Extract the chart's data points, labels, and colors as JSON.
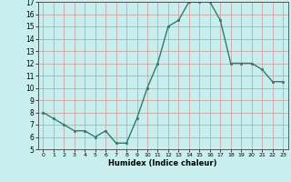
{
  "x": [
    0,
    1,
    2,
    3,
    4,
    5,
    6,
    7,
    8,
    9,
    10,
    11,
    12,
    13,
    14,
    15,
    16,
    17,
    18,
    19,
    20,
    21,
    22,
    23
  ],
  "y": [
    8.0,
    7.5,
    7.0,
    6.5,
    6.5,
    6.0,
    6.5,
    5.5,
    5.5,
    7.5,
    10.0,
    12.0,
    15.0,
    15.5,
    17.0,
    17.0,
    17.0,
    15.5,
    12.0,
    12.0,
    12.0,
    11.5,
    10.5,
    10.5
  ],
  "xlabel": "Humidex (Indice chaleur)",
  "ylim": [
    5,
    17
  ],
  "xlim_min": -0.5,
  "xlim_max": 23.5,
  "yticks": [
    5,
    6,
    7,
    8,
    9,
    10,
    11,
    12,
    13,
    14,
    15,
    16,
    17
  ],
  "xticks": [
    0,
    1,
    2,
    3,
    4,
    5,
    6,
    7,
    8,
    9,
    10,
    11,
    12,
    13,
    14,
    15,
    16,
    17,
    18,
    19,
    20,
    21,
    22,
    23
  ],
  "xtick_labels": [
    "0",
    "1",
    "2",
    "3",
    "4",
    "5",
    "6",
    "7",
    "8",
    "9",
    "10",
    "11",
    "12",
    "13",
    "14",
    "15",
    "16",
    "17",
    "18",
    "19",
    "20",
    "21",
    "22",
    "23"
  ],
  "line_color": "#2e7d6e",
  "marker": "s",
  "marker_size": 2.0,
  "bg_color": "#c8eeee",
  "grid_color": "#cc9999",
  "line_width": 1.0,
  "xlabel_fontsize": 6.0,
  "tick_fontsize_x": 4.5,
  "tick_fontsize_y": 5.5
}
